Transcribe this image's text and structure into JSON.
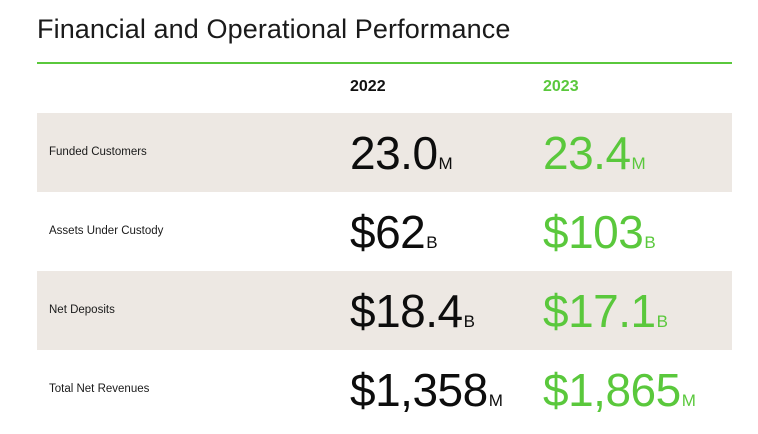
{
  "title": "Financial and Operational Performance",
  "colors": {
    "accent": "#5ac83c",
    "shade": "#ede8e3",
    "text": "#111111"
  },
  "columns": [
    "2022",
    "2023"
  ],
  "rows": [
    {
      "label": "Funded Customers",
      "v2022": "23.0",
      "u2022": "M",
      "v2023": "23.4",
      "u2023": "M"
    },
    {
      "label": "Assets Under Custody",
      "v2022": "$62",
      "u2022": "B",
      "v2023": "$103",
      "u2023": "B"
    },
    {
      "label": "Net Deposits",
      "v2022": "$18.4",
      "u2022": "B",
      "v2023": "$17.1",
      "u2023": "B"
    },
    {
      "label": "Total Net Revenues",
      "v2022": "$1,358",
      "u2022": "M",
      "v2023": "$1,865",
      "u2023": "M"
    }
  ]
}
